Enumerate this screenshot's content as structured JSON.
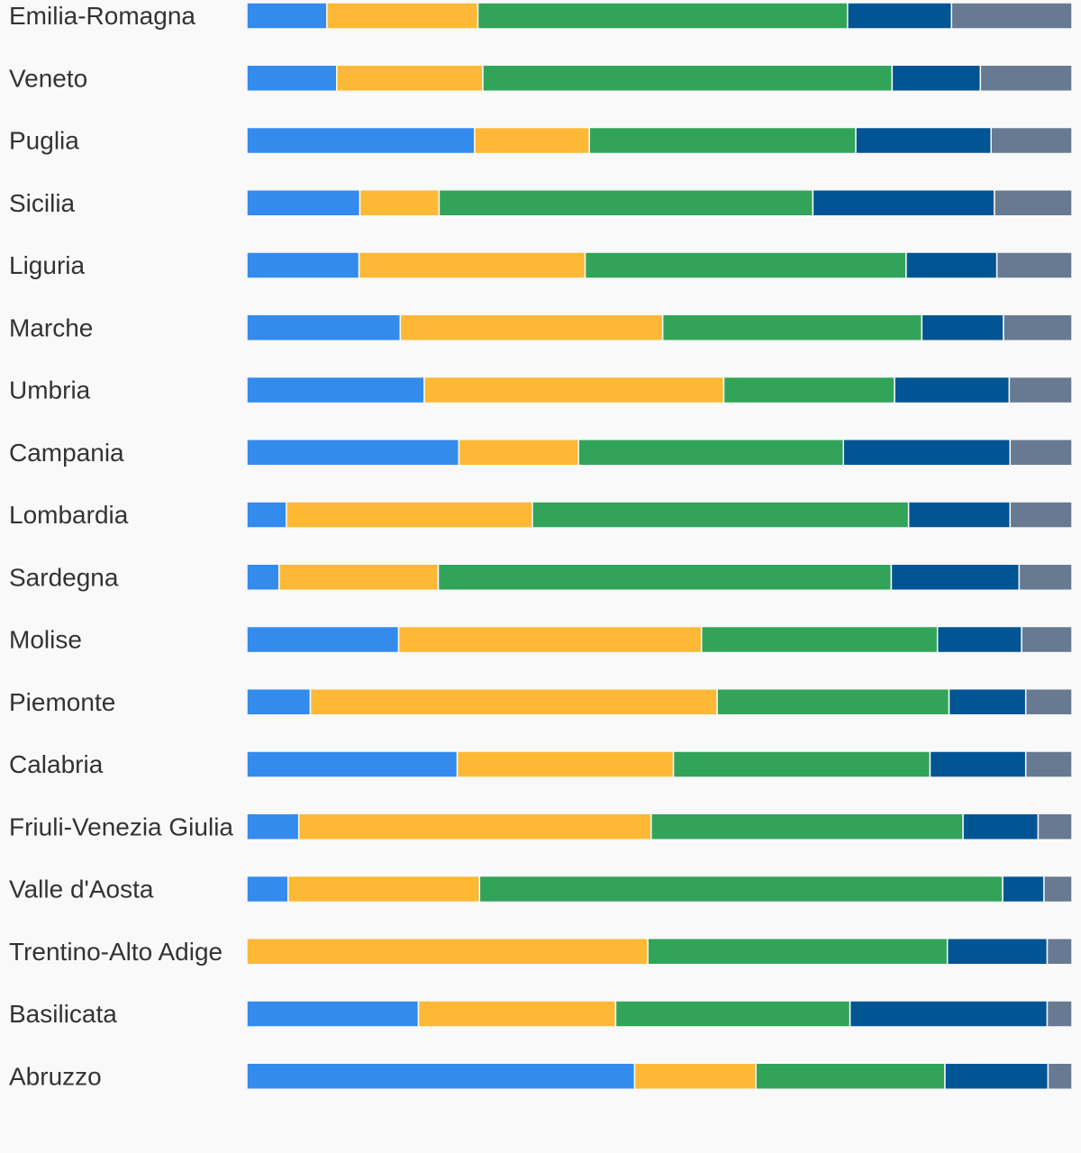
{
  "chart_data": {
    "type": "bar",
    "orientation": "horizontal",
    "stacked": "percent",
    "title": "",
    "xlabel": "",
    "ylabel": "",
    "legend": "none",
    "grid": false,
    "xlim": [
      0,
      100
    ],
    "colors": [
      "#338bed",
      "#fdb836",
      "#32a45a",
      "#025594",
      "#687a91"
    ],
    "categories": [
      "Emilia-Romagna",
      "Veneto",
      "Puglia",
      "Sicilia",
      "Liguria",
      "Marche",
      "Umbria",
      "Campania",
      "Lombardia",
      "Sardegna",
      "Molise",
      "Piemonte",
      "Calabria",
      "Friuli-Venezia Giulia",
      "Valle d'Aosta",
      "Trentino-Alto Adige",
      "Basilicata",
      "Abruzzo"
    ],
    "series": [
      {
        "values": [
          9.7,
          10.9,
          27.6,
          13.7,
          13.6,
          18.6,
          21.5,
          25.7,
          4.8,
          3.9,
          18.4,
          7.7,
          25.5,
          6.3,
          5.0,
          0.0,
          20.8,
          47.0
        ]
      },
      {
        "values": [
          18.3,
          17.7,
          13.9,
          9.6,
          27.4,
          31.8,
          36.3,
          14.5,
          29.8,
          19.3,
          36.7,
          49.3,
          26.2,
          42.7,
          23.2,
          48.6,
          23.9,
          14.7
        ]
      },
      {
        "values": [
          44.8,
          49.6,
          32.3,
          45.3,
          38.9,
          31.4,
          20.7,
          32.1,
          45.6,
          54.9,
          28.6,
          28.1,
          31.1,
          37.8,
          63.4,
          36.3,
          28.4,
          22.9
        ]
      },
      {
        "values": [
          12.6,
          10.7,
          16.4,
          22.0,
          11.0,
          9.9,
          13.9,
          20.2,
          12.3,
          15.5,
          10.2,
          9.3,
          11.6,
          9.1,
          5.0,
          12.1,
          23.9,
          12.5
        ]
      },
      {
        "values": [
          14.6,
          11.1,
          9.8,
          9.4,
          9.1,
          8.3,
          7.6,
          7.5,
          7.5,
          6.4,
          6.1,
          5.6,
          5.6,
          4.1,
          3.4,
          3.0,
          3.0,
          2.9
        ]
      }
    ]
  }
}
